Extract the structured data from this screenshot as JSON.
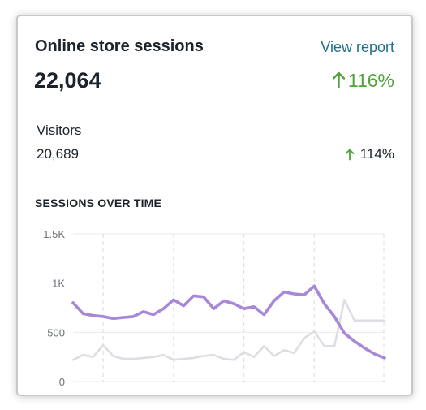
{
  "card": {
    "title": "Online store sessions",
    "view_report_label": "View report",
    "total_sessions": "22,064",
    "total_change": "116%",
    "visitors": {
      "label": "Visitors",
      "value": "20,689",
      "change": "114%"
    },
    "chart_heading": "SESSIONS OVER TIME"
  },
  "colors": {
    "accent_link": "#1f6f8b",
    "positive": "#50a33a",
    "current_series": "#a788d8",
    "previous_series": "#dcdee4",
    "grid": "#e3e5e8"
  },
  "icons": {
    "total_change_icon": "arrow-up-icon",
    "visitors_change_icon": "arrow-up-icon"
  },
  "chart_data": {
    "type": "line",
    "title": "SESSIONS OVER TIME",
    "xlabel": "",
    "ylabel": "",
    "ylim": [
      0,
      1500
    ],
    "y_ticks": [
      0,
      500,
      1000,
      1500
    ],
    "y_tick_labels": [
      "0",
      "500",
      "1K",
      "1.5K"
    ],
    "grid": true,
    "x": [
      0,
      1,
      2,
      3,
      4,
      5,
      6,
      7,
      8,
      9,
      10,
      11,
      12,
      13,
      14,
      15,
      16,
      17,
      18,
      19,
      20,
      21,
      22,
      23,
      24,
      25,
      26,
      27,
      28,
      29,
      30,
      31
    ],
    "series": [
      {
        "values": [
          800,
          690,
          670,
          660,
          640,
          650,
          660,
          710,
          680,
          740,
          830,
          770,
          870,
          860,
          740,
          820,
          790,
          740,
          760,
          680,
          820,
          910,
          890,
          880,
          970,
          790,
          660,
          490,
          410,
          340,
          280,
          240
        ]
      },
      {
        "values": [
          220,
          270,
          250,
          370,
          260,
          230,
          230,
          240,
          250,
          270,
          220,
          230,
          240,
          260,
          270,
          230,
          220,
          300,
          250,
          360,
          260,
          320,
          290,
          440,
          510,
          360,
          360,
          830,
          620,
          620,
          620,
          620
        ]
      }
    ]
  }
}
